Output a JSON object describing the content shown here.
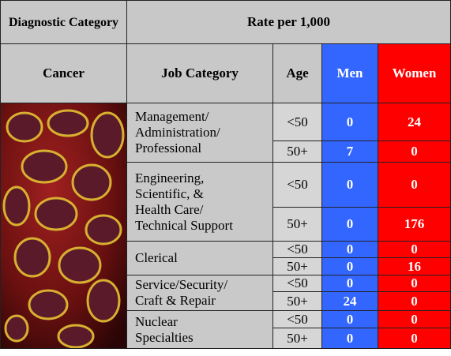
{
  "header": {
    "diagnostic": "Diagnostic Category",
    "rate": "Rate per 1,000"
  },
  "columns": [
    "Cancer",
    "Job Category",
    "Age",
    "Men",
    "Women"
  ],
  "groups": [
    {
      "job": [
        "Management/",
        "Administration/",
        "Professional"
      ],
      "rows": [
        {
          "age": "<50",
          "men": 0,
          "women": 24
        },
        {
          "age": "50+",
          "men": 7,
          "women": 0
        }
      ]
    },
    {
      "job": [
        "Engineering,",
        "Scientific, &",
        "Health Care/",
        "Technical Support"
      ],
      "rows": [
        {
          "age": "<50",
          "men": 0,
          "women": 0
        },
        {
          "age": "50+",
          "men": 0,
          "women": 176
        }
      ]
    },
    {
      "job": [
        "Clerical"
      ],
      "rows": [
        {
          "age": "<50",
          "men": 0,
          "women": 0
        },
        {
          "age": "50+",
          "men": 0,
          "women": 16
        }
      ]
    },
    {
      "job": [
        "Service/Security/",
        "Craft & Repair"
      ],
      "rows": [
        {
          "age": "<50",
          "men": 0,
          "women": 0
        },
        {
          "age": "50+",
          "men": 24,
          "women": 0
        }
      ]
    },
    {
      "job": [
        "Nuclear",
        "Specialties"
      ],
      "rows": [
        {
          "age": "<50",
          "men": 0,
          "women": 0
        },
        {
          "age": "50+",
          "men": 0,
          "women": 0
        }
      ]
    }
  ]
}
